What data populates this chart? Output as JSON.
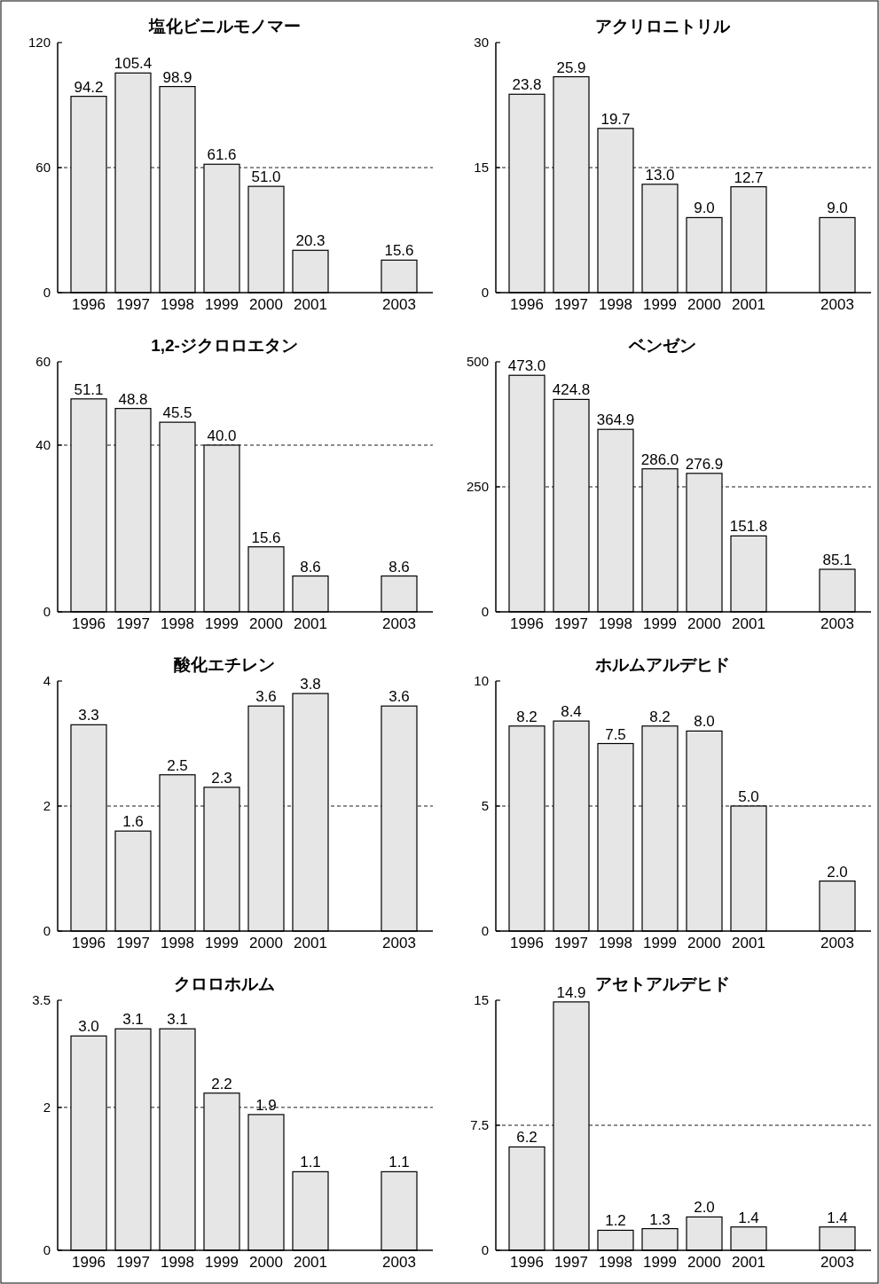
{
  "chart_data": [
    {
      "type": "bar",
      "title": "塩化ビニルモノマー",
      "categories": [
        "1996",
        "1997",
        "1998",
        "1999",
        "2000",
        "2001",
        null,
        "2003"
      ],
      "values": [
        94.2,
        105.4,
        98.9,
        61.6,
        51.0,
        20.3,
        null,
        15.6
      ],
      "value_labels": [
        "94.2",
        "105.4",
        "98.9",
        "61.6",
        "51.0",
        "20.3",
        null,
        "15.6"
      ],
      "color": "#e6e6e6",
      "ylim": [
        0,
        120
      ],
      "yticks": [
        0,
        60,
        120
      ],
      "ref_lines": [
        {
          "axis": "y",
          "value": 60,
          "line_style": "dashed"
        }
      ]
    },
    {
      "type": "bar",
      "title": "アクリロニトリル",
      "categories": [
        "1996",
        "1997",
        "1998",
        "1999",
        "2000",
        "2001",
        null,
        "2003"
      ],
      "values": [
        23.8,
        25.9,
        19.7,
        13.0,
        9.0,
        12.7,
        null,
        9.0
      ],
      "value_labels": [
        "23.8",
        "25.9",
        "19.7",
        "13.0",
        "9.0",
        "12.7",
        null,
        "9.0"
      ],
      "color": "#e6e6e6",
      "ylim": [
        0,
        30
      ],
      "yticks": [
        0,
        15,
        30
      ],
      "ref_lines": [
        {
          "axis": "y",
          "value": 15,
          "line_style": "dashed"
        }
      ]
    },
    {
      "type": "bar",
      "title": "1,2-ジクロロエタン",
      "categories": [
        "1996",
        "1997",
        "1998",
        "1999",
        "2000",
        "2001",
        null,
        "2003"
      ],
      "values": [
        51.1,
        48.8,
        45.5,
        40.0,
        15.6,
        8.6,
        null,
        8.6
      ],
      "value_labels": [
        "51.1",
        "48.8",
        "45.5",
        "40.0",
        "15.6",
        "8.6",
        null,
        "8.6"
      ],
      "color": "#e6e6e6",
      "ylim": [
        0,
        60
      ],
      "yticks": [
        0,
        40,
        60
      ],
      "ref_lines": [
        {
          "axis": "y",
          "value": 40,
          "line_style": "dashed"
        }
      ]
    },
    {
      "type": "bar",
      "title": "ベンゼン",
      "categories": [
        "1996",
        "1997",
        "1998",
        "1999",
        "2000",
        "2001",
        null,
        "2003"
      ],
      "values": [
        473.0,
        424.8,
        364.9,
        286.0,
        276.9,
        151.8,
        null,
        85.1
      ],
      "value_labels": [
        "473.0",
        "424.8",
        "364.9",
        "286.0",
        "276.9",
        "151.8",
        null,
        "85.1"
      ],
      "color": "#e6e6e6",
      "ylim": [
        0,
        500
      ],
      "yticks": [
        0,
        250,
        500
      ],
      "ref_lines": [
        {
          "axis": "y",
          "value": 250,
          "line_style": "dashed"
        }
      ]
    },
    {
      "type": "bar",
      "title": "酸化エチレン",
      "categories": [
        "1996",
        "1997",
        "1998",
        "1999",
        "2000",
        "2001",
        null,
        "2003"
      ],
      "values": [
        3.3,
        1.6,
        2.5,
        2.3,
        3.6,
        3.8,
        null,
        3.6
      ],
      "value_labels": [
        "3.3",
        "1.6",
        "2.5",
        "2.3",
        "3.6",
        "3.8",
        null,
        "3.6"
      ],
      "color": "#e6e6e6",
      "ylim": [
        0,
        4
      ],
      "yticks": [
        0,
        2,
        4
      ],
      "ref_lines": [
        {
          "axis": "y",
          "value": 2,
          "line_style": "dashed"
        }
      ]
    },
    {
      "type": "bar",
      "title": "ホルムアルデヒド",
      "categories": [
        "1996",
        "1997",
        "1998",
        "1999",
        "2000",
        "2001",
        null,
        "2003"
      ],
      "values": [
        8.2,
        8.4,
        7.5,
        8.2,
        8.0,
        5.0,
        null,
        2.0
      ],
      "value_labels": [
        "8.2",
        "8.4",
        "7.5",
        "8.2",
        "8.0",
        "5.0",
        null,
        "2.0"
      ],
      "color": "#e6e6e6",
      "ylim": [
        0,
        10
      ],
      "yticks": [
        0,
        5,
        10
      ],
      "ref_lines": [
        {
          "axis": "y",
          "value": 5,
          "line_style": "dashed"
        }
      ]
    },
    {
      "type": "bar",
      "title": "クロロホルム",
      "categories": [
        "1996",
        "1997",
        "1998",
        "1999",
        "2000",
        "2001",
        null,
        "2003"
      ],
      "values": [
        3.0,
        3.1,
        3.1,
        2.2,
        1.9,
        1.1,
        null,
        1.1
      ],
      "value_labels": [
        "3.0",
        "3.1",
        "3.1",
        "2.2",
        "1.9",
        "1.1",
        null,
        "1.1"
      ],
      "color": "#e6e6e6",
      "ylim": [
        0,
        3.5
      ],
      "yticks": [
        0,
        2,
        3.5
      ],
      "ref_lines": [
        {
          "axis": "y",
          "value": 2,
          "line_style": "dashed"
        }
      ]
    },
    {
      "type": "bar",
      "title": "アセトアルデヒド",
      "categories": [
        "1996",
        "1997",
        "1998",
        "1999",
        "2000",
        "2001",
        null,
        "2003"
      ],
      "values": [
        6.2,
        14.9,
        1.2,
        1.3,
        2.0,
        1.4,
        null,
        1.4
      ],
      "value_labels": [
        "6.2",
        "14.9",
        "1.2",
        "1.3",
        "2.0",
        "1.4",
        null,
        "1.4"
      ],
      "color": "#e6e6e6",
      "ylim": [
        0,
        15
      ],
      "yticks": [
        0,
        7.5,
        15
      ],
      "ref_lines": [
        {
          "axis": "y",
          "value": 7.5,
          "line_style": "dashed"
        }
      ]
    }
  ]
}
